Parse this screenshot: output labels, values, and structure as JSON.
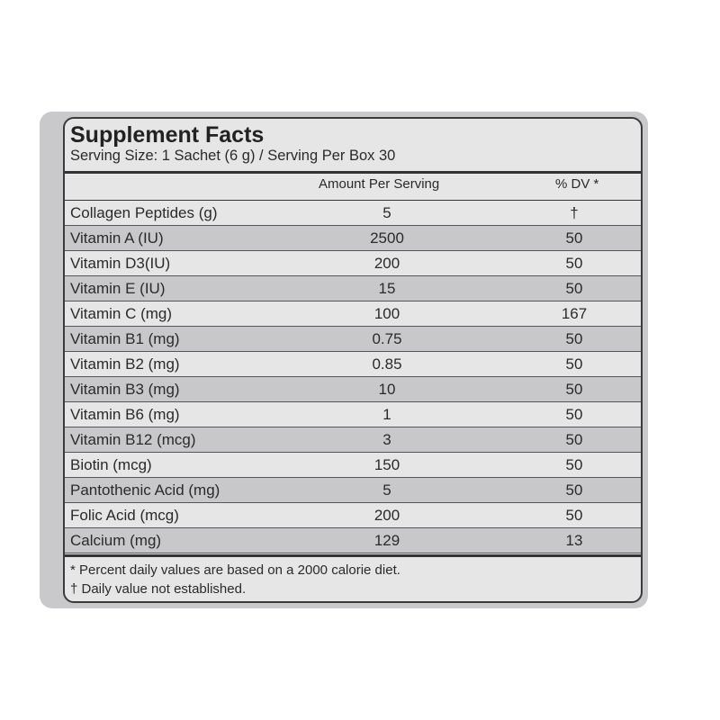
{
  "header": {
    "title": "Supplement Facts",
    "serving": "Serving Size: 1 Sachet (6 g) / Serving Per Box 30"
  },
  "table": {
    "columns": [
      "Amount Per Serving",
      "% DV *"
    ],
    "rows": [
      [
        "Collagen Peptides (g)",
        "5",
        "†"
      ],
      [
        "Vitamin A (IU)",
        "2500",
        "50"
      ],
      [
        "Vitamin D3(IU)",
        "200",
        "50"
      ],
      [
        "Vitamin E (IU)",
        "15",
        "50"
      ],
      [
        "Vitamin C (mg)",
        "100",
        "167"
      ],
      [
        "Vitamin B1 (mg)",
        "0.75",
        "50"
      ],
      [
        "Vitamin B2 (mg)",
        "0.85",
        "50"
      ],
      [
        "Vitamin B3 (mg)",
        "10",
        "50"
      ],
      [
        "Vitamin B6 (mg)",
        "1",
        "50"
      ],
      [
        "Vitamin B12 (mcg)",
        "3",
        "50"
      ],
      [
        "Biotin (mcg)",
        "150",
        "50"
      ],
      [
        "Pantothenic Acid (mg)",
        "5",
        "50"
      ],
      [
        "Folic Acid (mcg)",
        "200",
        "50"
      ],
      [
        "Calcium (mg)",
        "129",
        "13"
      ]
    ]
  },
  "footnotes": [
    "* Percent daily values are based on a 2000 calorie diet.",
    "† Daily value not established."
  ]
}
